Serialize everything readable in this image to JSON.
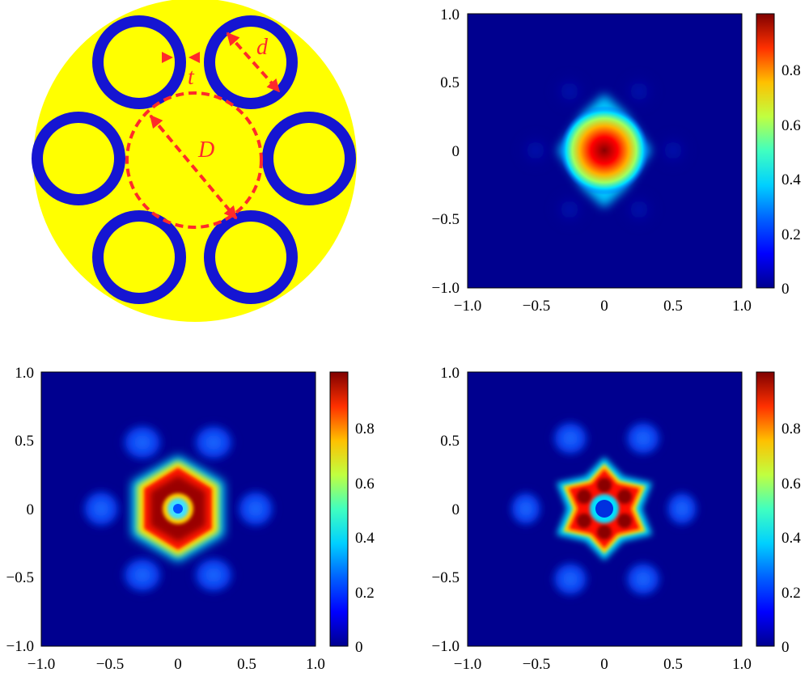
{
  "schematic": {
    "colors": {
      "background": "#ffff00",
      "ring": "#1515d2",
      "annotation": "#ff2a2a"
    },
    "labels": {
      "t": "t",
      "d": "d",
      "D": "D"
    }
  },
  "colormap": [
    "#00008f",
    "#0000ff",
    "#0080ff",
    "#00ffff",
    "#80ff80",
    "#ffff00",
    "#ff8000",
    "#ff0000",
    "#800000"
  ],
  "panels": [
    {
      "id": "fundamental",
      "x_ticks": [
        "−1.0",
        "−0.5",
        "0",
        "0.5",
        "1.0"
      ],
      "y_ticks": [
        "1.0",
        "0.5",
        "0",
        "−0.5",
        "−1.0"
      ],
      "colorbar_ticks": [
        "0.8",
        "0.6",
        "0.4",
        "0.2",
        "0"
      ]
    },
    {
      "id": "ring-mode",
      "x_ticks": [
        "−1.0",
        "−0.5",
        "0",
        "0.5",
        "1.0"
      ],
      "y_ticks": [
        "1.0",
        "0.5",
        "0",
        "−0.5",
        "−1.0"
      ],
      "colorbar_ticks": [
        "0.8",
        "0.6",
        "0.4",
        "0.2",
        "0"
      ]
    },
    {
      "id": "higher-order-mode",
      "x_ticks": [
        "−1.0",
        "−0.5",
        "0",
        "0.5",
        "1.0"
      ],
      "y_ticks": [
        "1.0",
        "0.5",
        "0",
        "−0.5",
        "−1.0"
      ],
      "colorbar_ticks": [
        "0.8",
        "0.6",
        "0.4",
        "0.2",
        "0"
      ]
    }
  ]
}
